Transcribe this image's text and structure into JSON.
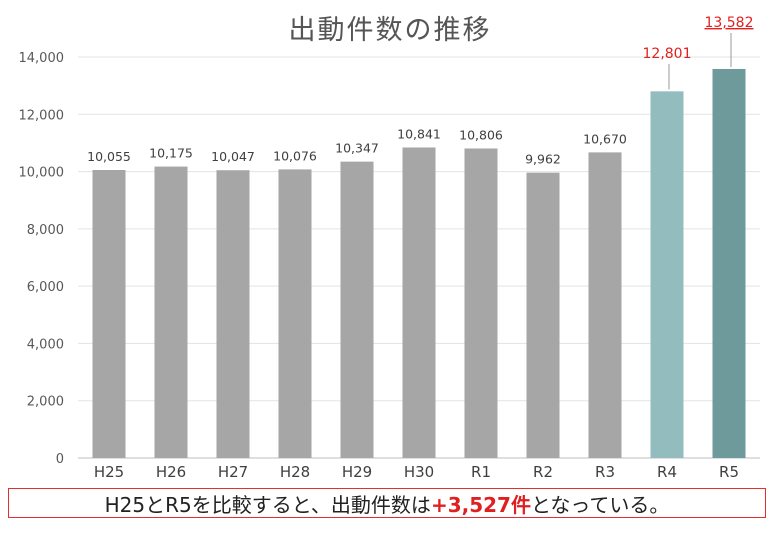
{
  "chart_data": {
    "type": "bar",
    "title": "出動件数の推移",
    "categories": [
      "H25",
      "H26",
      "H27",
      "H28",
      "H29",
      "H30",
      "R1",
      "R2",
      "R3",
      "R4",
      "R5"
    ],
    "values": [
      10055,
      10175,
      10047,
      10076,
      10347,
      10841,
      10806,
      9962,
      10670,
      12801,
      13582
    ],
    "value_labels": [
      "10,055",
      "10,175",
      "10,047",
      "10,076",
      "10,347",
      "10,841",
      "10,806",
      "9,962",
      "10,670",
      "12,801",
      "13,582"
    ],
    "ylim": [
      0,
      14000
    ],
    "yticks": [
      0,
      2000,
      4000,
      6000,
      8000,
      10000,
      12000,
      14000
    ],
    "ytick_labels": [
      "0",
      "2,000",
      "4,000",
      "6,000",
      "8,000",
      "10,000",
      "12,000",
      "14,000"
    ],
    "grid": true,
    "bar_colors": [
      "#a6a6a6",
      "#a6a6a6",
      "#a6a6a6",
      "#a6a6a6",
      "#a6a6a6",
      "#a6a6a6",
      "#a6a6a6",
      "#a6a6a6",
      "#a6a6a6",
      "#93bcbe",
      "#6f9a9c"
    ],
    "highlight_label_color": "#e02020",
    "normal_label_color": "#404040"
  },
  "summary": {
    "prefix": "H25とR5を比較すると、出動件数は",
    "highlight": "+3,527件",
    "suffix": "となっている。"
  }
}
